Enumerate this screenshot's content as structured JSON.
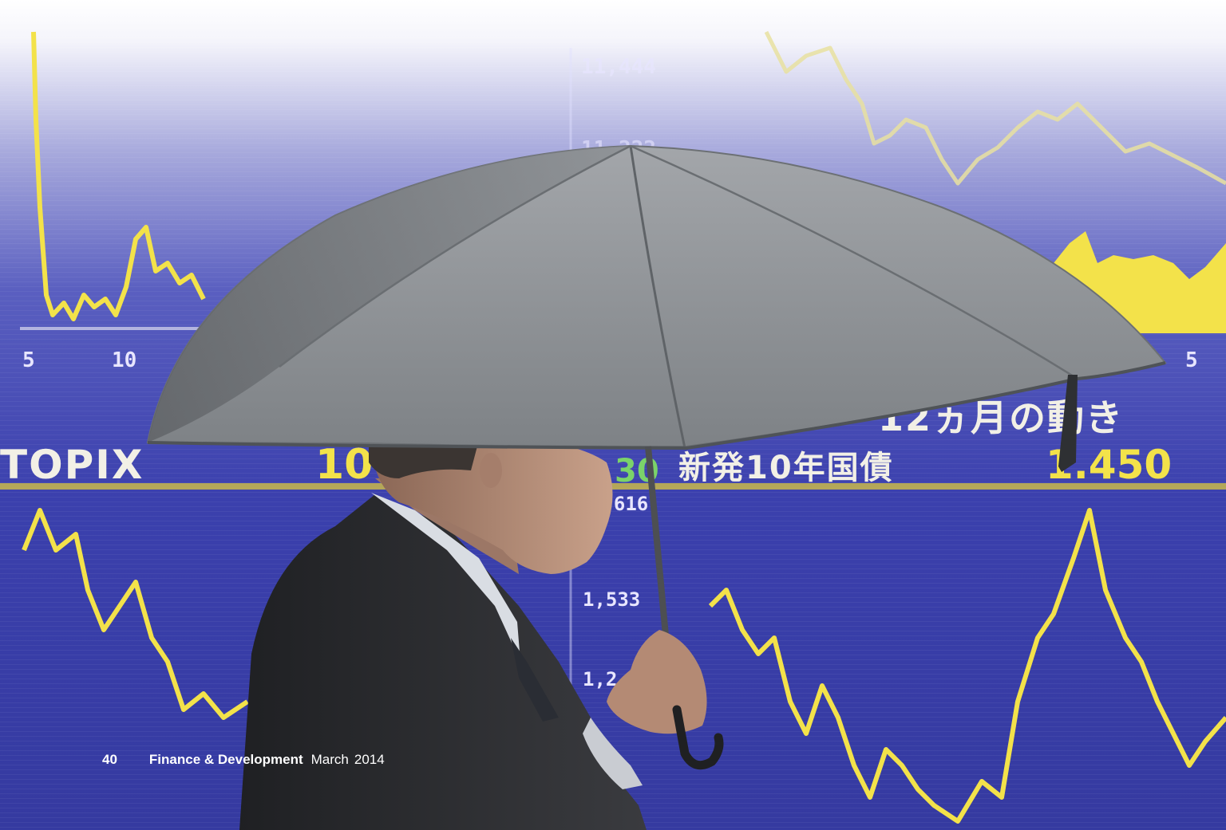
{
  "board": {
    "index_label": "TOPIX",
    "index_value": "107",
    "index_change": "30",
    "jgb_label": "新発10年国債",
    "jgb_value": "1.450",
    "period_label": "12ヵ月の動き",
    "axis_ticks": [
      "11,444",
      "11,222",
      "1,616",
      "1,533",
      "1,2"
    ],
    "small_ticks": [
      "5",
      "10",
      "5"
    ]
  },
  "footer": {
    "page_number": "40",
    "magazine": "Finance & Development",
    "issue_month": "March",
    "issue_year": "2014"
  },
  "colors": {
    "board_blue": "#3a3fa8",
    "line_yellow": "#f3e24a",
    "umbrella_gray": "#8e9296",
    "suit_dark": "#2a2b2e"
  }
}
